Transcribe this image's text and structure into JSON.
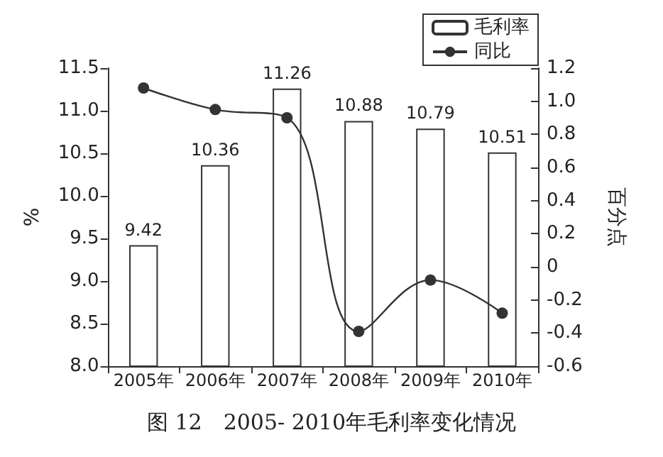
{
  "chart_data": {
    "type": "bar",
    "title": "图 12　2005- 2010年毛利率变化情况",
    "categories": [
      "2005年",
      "2006年",
      "2007年",
      "2008年",
      "2009年",
      "2010年"
    ],
    "series": [
      {
        "name": "毛利率",
        "color": "#ffffff",
        "values": [
          9.42,
          10.36,
          11.26,
          10.88,
          10.79,
          10.51
        ],
        "value_labels": [
          "9.42",
          "10.36",
          "11.26",
          "10.88",
          "10.79",
          "10.51"
        ]
      },
      {
        "name": "同比",
        "type": "line",
        "axis": "y2",
        "color": "#333333",
        "values": [
          1.08,
          0.95,
          0.9,
          -0.39,
          -0.08,
          -0.28
        ]
      }
    ],
    "ylabel": "%",
    "y2label": "百分点",
    "ylim": [
      8,
      11.5
    ],
    "yticks": [
      {
        "value": 8,
        "label": "8.0"
      },
      {
        "value": 8.5,
        "label": "8.5"
      },
      {
        "value": 9,
        "label": "9.0"
      },
      {
        "value": 9.5,
        "label": "9.5"
      },
      {
        "value": 10,
        "label": "10.0"
      },
      {
        "value": 10.5,
        "label": "10.5"
      },
      {
        "value": 11,
        "label": "11.0"
      },
      {
        "value": 11.5,
        "label": "11.5"
      }
    ],
    "y2lim": [
      -0.6,
      1.2
    ],
    "y2ticks": [
      {
        "value": -0.6,
        "label": "-0.6"
      },
      {
        "value": -0.4,
        "label": "-0.4"
      },
      {
        "value": -0.2,
        "label": "-0.2"
      },
      0,
      {
        "value": 0.2,
        "label": "0.2"
      },
      {
        "value": 0.4,
        "label": "0.4"
      },
      {
        "value": 0.6,
        "label": "0.6"
      },
      {
        "value": 0.8,
        "label": "0.8"
      },
      {
        "value": 1,
        "label": "1.0"
      },
      {
        "value": 1.2,
        "label": "1.2"
      }
    ],
    "legend": "top right",
    "marker": "circle",
    "line_style": "solid",
    "grid": false
  }
}
